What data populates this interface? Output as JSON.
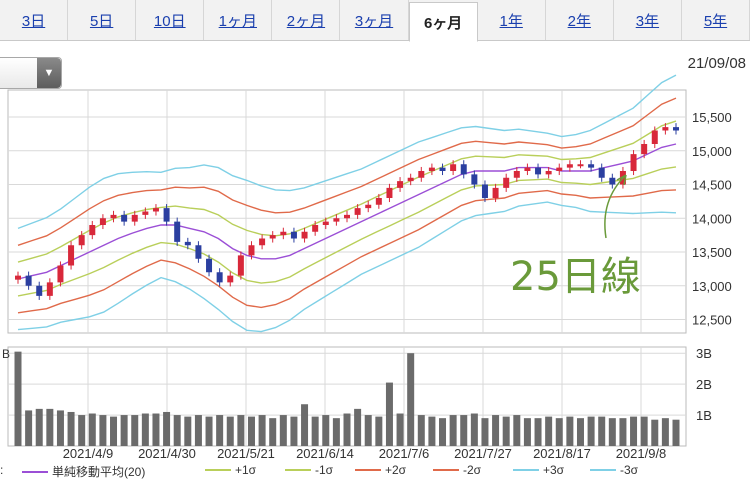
{
  "tabs": [
    {
      "label": "3日",
      "active": false
    },
    {
      "label": "5日",
      "active": false
    },
    {
      "label": "10日",
      "active": false
    },
    {
      "label": "1ヶ月",
      "active": false
    },
    {
      "label": "2ヶ月",
      "active": false
    },
    {
      "label": "3ヶ月",
      "active": false
    },
    {
      "label": "6ヶ月",
      "active": true
    },
    {
      "label": "1年",
      "active": false
    },
    {
      "label": "2年",
      "active": false
    },
    {
      "label": "3年",
      "active": false
    },
    {
      "label": "5年",
      "active": false
    }
  ],
  "dropdown": {
    "icon": "chevron-down-icon",
    "arrow_glyph": "▼"
  },
  "date_label": "21/09/08",
  "annotation": {
    "text": "25日線",
    "color": "#6a9a3a"
  },
  "legend": {
    "prefix": ":",
    "items": [
      {
        "label": "単純移動平均(20)",
        "color": "#9b4fd6"
      },
      {
        "label": "+1σ",
        "color": "#b9cf5a"
      },
      {
        "label": "-1σ",
        "color": "#b9cf5a"
      },
      {
        "label": "+2σ",
        "color": "#e06a4a"
      },
      {
        "label": "-2σ",
        "color": "#e06a4a"
      },
      {
        "label": "+3σ",
        "color": "#7fd0e6"
      },
      {
        "label": "-3σ",
        "color": "#7fd0e6"
      }
    ]
  },
  "colors": {
    "up": "#d8283a",
    "down": "#2b3fa0",
    "volume": "#6b6b6b",
    "grid": "#d9d9d9"
  },
  "chart_data": {
    "type": "candlestick",
    "x_labels": [
      "2021/4/9",
      "2021/4/30",
      "2021/5/21",
      "2021/6/14",
      "2021/7/6",
      "2021/7/27",
      "2021/8/17",
      "2021/9/8"
    ],
    "y_ticks": [
      12500,
      13000,
      13500,
      14000,
      14500,
      15000,
      15500
    ],
    "y_tick_labels": [
      "12,500",
      "13,000",
      "13,500",
      "14,000",
      "14,500",
      "15,000",
      "15,500"
    ],
    "ylim": [
      12300,
      15900
    ],
    "volume_ticks": [
      1,
      2,
      3
    ],
    "volume_tick_labels": [
      "1B",
      "2B",
      "3B"
    ],
    "volume_axis_left_label": "B",
    "volume_ylim": [
      0,
      3.2
    ],
    "close_values": [
      13150,
      13000,
      12850,
      13050,
      13300,
      13600,
      13750,
      13900,
      14000,
      14050,
      13950,
      14050,
      14100,
      14150,
      13950,
      13650,
      13600,
      13400,
      13200,
      13050,
      13150,
      13450,
      13600,
      13700,
      13750,
      13800,
      13700,
      13800,
      13900,
      13950,
      14000,
      14050,
      14150,
      14200,
      14300,
      14450,
      14550,
      14600,
      14700,
      14750,
      14700,
      14800,
      14650,
      14500,
      14300,
      14450,
      14600,
      14700,
      14750,
      14650,
      14700,
      14750,
      14800,
      14800,
      14750,
      14600,
      14500,
      14700,
      14950,
      15100,
      15300,
      15350,
      15300
    ],
    "volume_values": [
      3.05,
      1.15,
      1.2,
      1.2,
      1.15,
      1.1,
      1.0,
      1.05,
      1.0,
      0.95,
      1.0,
      1.0,
      1.05,
      1.05,
      1.1,
      1.0,
      0.95,
      1.0,
      0.95,
      1.0,
      0.95,
      1.0,
      0.95,
      1.0,
      0.9,
      1.0,
      0.95,
      1.35,
      0.95,
      1.0,
      0.9,
      1.05,
      1.2,
      1.0,
      0.95,
      2.05,
      1.05,
      3.0,
      1.0,
      0.95,
      0.9,
      1.0,
      1.0,
      1.05,
      0.9,
      1.0,
      0.95,
      1.0,
      0.9,
      0.9,
      0.95,
      0.9,
      0.95,
      0.9,
      0.95,
      0.95,
      0.9,
      0.9,
      0.95,
      0.95,
      0.85,
      0.9,
      0.85
    ],
    "sma20": [
      13100,
      13150,
      13200,
      13300,
      13400,
      13500,
      13600,
      13700,
      13780,
      13850,
      13900,
      13900,
      13850,
      13800,
      13700,
      13550,
      13450,
      13400,
      13400,
      13450,
      13550,
      13650,
      13750,
      13850,
      13950,
      14050,
      14150,
      14250,
      14350,
      14450,
      14550,
      14650,
      14700,
      14700,
      14700,
      14750,
      14750,
      14750,
      14700,
      14700,
      14700,
      14750,
      14800,
      14850,
      14950,
      15050,
      15100
    ],
    "sigma": [
      250,
      260,
      270,
      280,
      300,
      320,
      330,
      320,
      300,
      280,
      260,
      280,
      300,
      330,
      350,
      360,
      370,
      360,
      340,
      320,
      300,
      290,
      280,
      270,
      260,
      260,
      260,
      260,
      260,
      250,
      240,
      230,
      220,
      210,
      200,
      190,
      180,
      170,
      170,
      180,
      200,
      220,
      240,
      260,
      290,
      320,
      340
    ]
  }
}
